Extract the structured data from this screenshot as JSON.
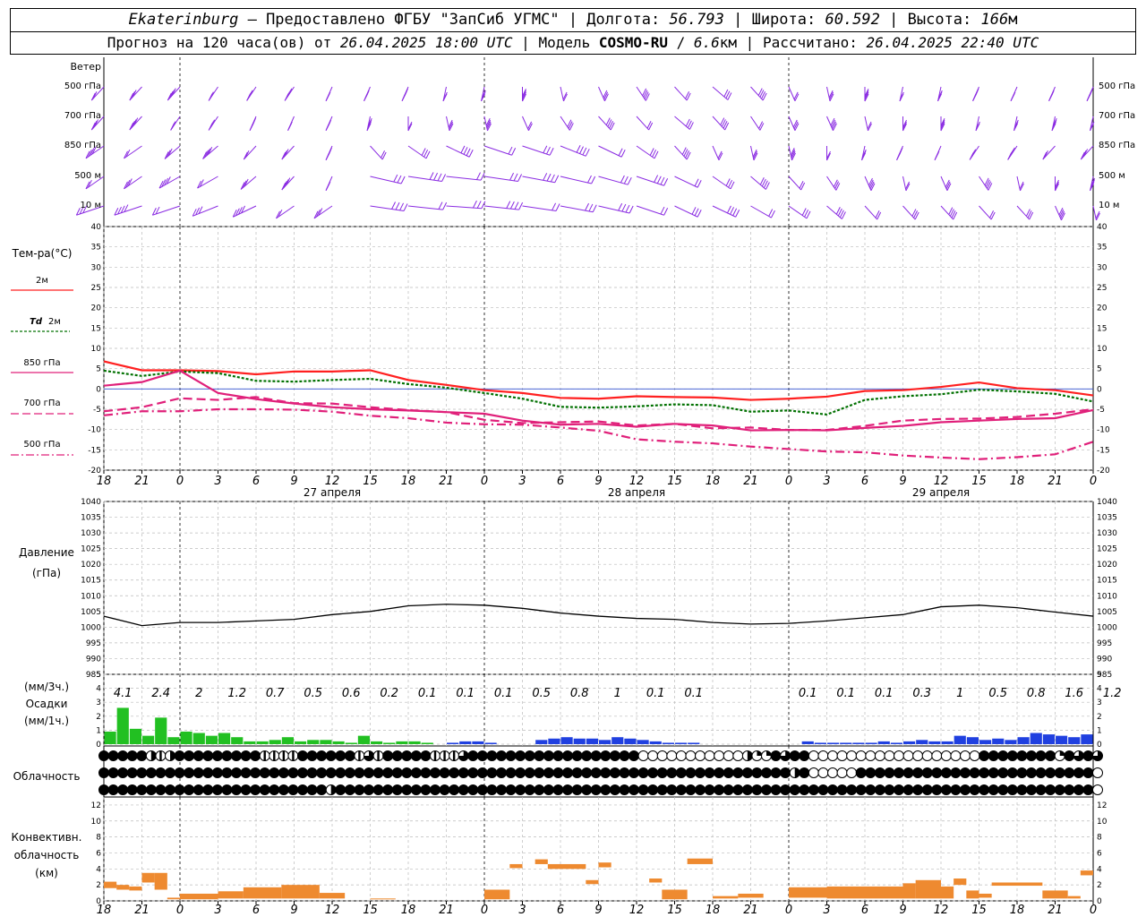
{
  "header": {
    "city": "Ekaterinburg",
    "dash": "–",
    "provider": "Предоставлено ФГБУ \"ЗапСиб УГМС\"",
    "lon_label": "Долгота:",
    "lon": "56.793",
    "lat_label": "Широта:",
    "lat": "60.592",
    "alt_label": "Высота:",
    "alt": "166",
    "alt_unit": "м",
    "fc_label": "Прогноз на 120 часа(ов) от",
    "fc_from": "26.04.2025 18:00 UTC",
    "model_label": "Модель",
    "model": "COSMO-RU",
    "res": "6.6",
    "res_unit": "км",
    "calc_label": "Рассчитано:",
    "calc": "26.04.2025 22:40 UTC"
  },
  "panels": {
    "wind": {
      "title": "Ветер",
      "levels": [
        "500 гПа",
        "700 гПа",
        "850 гПа",
        "500 м",
        "10 м"
      ],
      "color": "#8a2be2"
    },
    "temp": {
      "title": "Тем-ра(°C)",
      "legend": [
        {
          "label": "2м",
          "color": "#ff2020",
          "style": "solid"
        },
        {
          "label": "Td",
          "label2": "2м",
          "color": "#007000",
          "style": "dot"
        },
        {
          "label": "850 гПа",
          "color": "#e0207a",
          "style": "solid"
        },
        {
          "label": "700 гПа",
          "color": "#e0207a",
          "style": "dash"
        },
        {
          "label": "500 гПа",
          "color": "#e0207a",
          "style": "dashdot"
        }
      ],
      "yticks": [
        "40",
        "35",
        "30",
        "25",
        "20",
        "15",
        "10",
        "5",
        "0",
        "-5",
        "-10",
        "-15",
        "-20"
      ]
    },
    "pressure": {
      "title": "Давление",
      "unit": "(гПа)",
      "yticks": [
        "1040",
        "1035",
        "1030",
        "1025",
        "1020",
        "1015",
        "1010",
        "1005",
        "1000",
        "995",
        "990",
        "985"
      ]
    },
    "precip": {
      "unit_top": "(мм/3ч.)",
      "title": "Осадки",
      "unit_bottom": "(мм/1ч.)",
      "yticks": [
        "5",
        "4",
        "3",
        "2",
        "1",
        "0"
      ],
      "sums": [
        "4.1",
        "2.4",
        "2",
        "1.2",
        "0.7",
        "0.5",
        "0.6",
        "0.2",
        "0.1",
        "0.1",
        "0.1",
        "0.5",
        "0.8",
        "1",
        "0.1",
        "0.1",
        "",
        "",
        "0.1",
        "0.1",
        "0.1",
        "0.3",
        "1",
        "0.5",
        "0.8",
        "1.6",
        "1.2"
      ]
    },
    "cloud": {
      "title": "Облачность"
    },
    "conv": {
      "title_1": "Конвективн.",
      "title_2": "облачность",
      "unit": "(км)",
      "yticks": [
        "12",
        "10",
        "8",
        "6",
        "4",
        "2",
        "0"
      ]
    }
  },
  "time_axis": {
    "hour_labels": [
      "18",
      "21",
      "0",
      "3",
      "6",
      "9",
      "12",
      "15",
      "18",
      "21",
      "0",
      "3",
      "6",
      "9",
      "12",
      "15",
      "18",
      "21",
      "0",
      "3",
      "6",
      "9",
      "12",
      "15",
      "18",
      "21",
      "0"
    ],
    "day_labels": [
      "27 апреля",
      "28 апреля",
      "29 апреля"
    ]
  },
  "chart_data": {
    "type": "line",
    "x_unit": "hours since 26.04.2025 18:00 UTC",
    "x_range": [
      0,
      78
    ],
    "temperature": {
      "ylim": [
        -20,
        40
      ],
      "series": [
        {
          "name": "2м",
          "x": [
            0,
            3,
            6,
            9,
            12,
            15,
            18,
            21,
            24,
            27,
            30,
            33,
            36,
            39,
            42,
            45,
            48,
            51,
            54,
            57,
            60,
            63,
            66,
            69,
            72,
            75,
            78
          ],
          "values": [
            6.8,
            4.6,
            4.6,
            4.4,
            3.6,
            4.3,
            4.3,
            4.6,
            2.2,
            1.0,
            -0.3,
            -1.0,
            -2.2,
            -2.4,
            -1.8,
            -2.0,
            -2.1,
            -2.7,
            -2.4,
            -1.9,
            -0.5,
            -0.3,
            0.5,
            1.6,
            0.2,
            -0.3,
            -1.6
          ]
        },
        {
          "name": "Td 2м",
          "x": [
            0,
            3,
            6,
            9,
            12,
            15,
            18,
            21,
            24,
            27,
            30,
            33,
            36,
            39,
            42,
            45,
            48,
            51,
            54,
            57,
            60,
            63,
            66,
            69,
            72,
            75,
            78
          ],
          "values": [
            4.5,
            3.2,
            4.3,
            3.9,
            2.0,
            1.8,
            2.2,
            2.5,
            1.2,
            0.3,
            -1.0,
            -2.4,
            -4.4,
            -4.6,
            -4.3,
            -3.8,
            -4.0,
            -5.6,
            -5.3,
            -6.3,
            -2.7,
            -1.8,
            -1.3,
            -0.2,
            -0.6,
            -1.2,
            -3.1
          ]
        },
        {
          "name": "850 гПа",
          "x": [
            0,
            3,
            6,
            9,
            12,
            15,
            18,
            21,
            24,
            27,
            30,
            33,
            36,
            39,
            42,
            45,
            48,
            51,
            54,
            57,
            60,
            63,
            66,
            69,
            72,
            75,
            78
          ],
          "values": [
            0.8,
            1.7,
            4.5,
            -1.0,
            -2.5,
            -3.6,
            -4.5,
            -5.0,
            -5.3,
            -5.7,
            -6.1,
            -7.8,
            -8.8,
            -8.6,
            -9.3,
            -8.6,
            -9.0,
            -10.2,
            -10.1,
            -10.2,
            -9.6,
            -9.1,
            -8.2,
            -7.8,
            -7.4,
            -7.2,
            -5.2
          ]
        },
        {
          "name": "700 гПа",
          "x": [
            0,
            3,
            6,
            9,
            12,
            15,
            18,
            21,
            24,
            27,
            30,
            33,
            36,
            39,
            42,
            45,
            48,
            51,
            54,
            57,
            60,
            63,
            66,
            69,
            72,
            75,
            78
          ],
          "values": [
            -5.5,
            -4.5,
            -2.3,
            -2.7,
            -2.0,
            -3.5,
            -3.6,
            -4.5,
            -5.2,
            -5.7,
            -7.6,
            -8.4,
            -8.2,
            -8.0,
            -9.0,
            -8.6,
            -9.7,
            -9.5,
            -10.1,
            -10.1,
            -9.1,
            -7.8,
            -7.4,
            -7.3,
            -6.9,
            -6.1,
            -5.0
          ]
        },
        {
          "name": "500 гПа",
          "x": [
            0,
            3,
            6,
            9,
            12,
            15,
            18,
            21,
            24,
            27,
            30,
            33,
            36,
            39,
            42,
            45,
            48,
            51,
            54,
            57,
            60,
            63,
            66,
            69,
            72,
            75,
            78
          ],
          "values": [
            -6.5,
            -5.5,
            -5.5,
            -5.0,
            -5.0,
            -5.1,
            -5.6,
            -6.6,
            -7.2,
            -8.3,
            -8.7,
            -8.8,
            -9.5,
            -10.3,
            -12.4,
            -13.0,
            -13.4,
            -14.2,
            -14.8,
            -15.4,
            -15.6,
            -16.4,
            -16.9,
            -17.3,
            -16.8,
            -16.1,
            -13.0
          ]
        }
      ]
    },
    "pressure": {
      "ylim": [
        985,
        1040
      ],
      "x": [
        0,
        3,
        6,
        9,
        12,
        15,
        18,
        21,
        24,
        27,
        30,
        33,
        36,
        39,
        42,
        45,
        48,
        51,
        54,
        57,
        60,
        63,
        66,
        69,
        72,
        75,
        78
      ],
      "values": [
        1003.5,
        1000.5,
        1001.5,
        1001.5,
        1002.0,
        1002.5,
        1004.0,
        1005.0,
        1006.8,
        1007.3,
        1007.0,
        1006.0,
        1004.5,
        1003.5,
        1002.8,
        1002.5,
        1001.5,
        1001.0,
        1001.2,
        1002.0,
        1003.0,
        1004.0,
        1006.5,
        1007.0,
        1006.2,
        1004.8,
        1003.5
      ]
    },
    "precip_hourly": {
      "ylim": [
        0,
        5
      ],
      "green": {
        "x": [
          0,
          1,
          2,
          3,
          4,
          5,
          6,
          7,
          8,
          9,
          10,
          11,
          12,
          13,
          14,
          15,
          16,
          17,
          18,
          19,
          20,
          21,
          22,
          23,
          24,
          25
        ],
        "values": [
          0.9,
          2.6,
          1.1,
          0.6,
          1.9,
          0.5,
          0.9,
          0.8,
          0.6,
          0.8,
          0.5,
          0.2,
          0.2,
          0.3,
          0.5,
          0.2,
          0.3,
          0.3,
          0.2,
          0.1,
          0.6,
          0.2,
          0.1,
          0.2,
          0.2,
          0.1
        ]
      },
      "blue": {
        "x": [
          27,
          28,
          29,
          30,
          34,
          35,
          36,
          37,
          38,
          39,
          40,
          41,
          42,
          43,
          44,
          45,
          46,
          55,
          56,
          57,
          58,
          59,
          60,
          61,
          62,
          63,
          64,
          65,
          66,
          67,
          68,
          69,
          70,
          71,
          72,
          73,
          74,
          75,
          76,
          77
        ],
        "values": [
          0.1,
          0.2,
          0.2,
          0.1,
          0.3,
          0.4,
          0.5,
          0.4,
          0.4,
          0.3,
          0.5,
          0.4,
          0.3,
          0.2,
          0.1,
          0.1,
          0.1,
          0.2,
          0.1,
          0.1,
          0.1,
          0.1,
          0.1,
          0.2,
          0.1,
          0.2,
          0.3,
          0.2,
          0.2,
          0.6,
          0.5,
          0.3,
          0.4,
          0.3,
          0.5,
          0.8,
          0.7,
          0.6,
          0.5,
          0.7
        ]
      }
    },
    "cloud_rows": [
      "FFFFFHOHFFFFFFFFFOOOOFFFFFFOMOFFFFFOOOMFFFFFFFFFFFFFFFFFFEEEEEEEEEEEHTTFMFFEEEEEEEEEEEEEEEEEEFFFFFFFFTFMFM",
      "FFFFFFFFFFFFFFFFFFFFFFFFFFFFFFFFFFFFFFFFFFFFFFFFFFFFFFFFFFFFFFFFFFFFFFFFFHFEEEEEFFFFFFFFFFFFFFFFFFFFFFFFF",
      "FFFFFFFFFFFFFFFFFFFFFFFFHFFFFFFFFFFFFFFFFFFFFFFFFFFFFFFFFFFFFFFFFFFFFFFFFFFFFFFFFFFFFFFFFFFFFFFFFFFFFFFFF"
    ],
    "convective": {
      "ylim": [
        0,
        12
      ],
      "units": "km",
      "segments": [
        {
          "x0": 0,
          "x1": 1,
          "base": 1.6,
          "top": 2.4
        },
        {
          "x0": 1,
          "x1": 2,
          "base": 1.4,
          "top": 2.0
        },
        {
          "x0": 2,
          "x1": 3,
          "base": 1.3,
          "top": 1.8
        },
        {
          "x0": 3,
          "x1": 4,
          "base": 2.3,
          "top": 3.5
        },
        {
          "x0": 4,
          "x1": 5,
          "base": 1.4,
          "top": 3.5
        },
        {
          "x0": 5,
          "x1": 6,
          "base": 0.2,
          "top": 0.4
        },
        {
          "x0": 6,
          "x1": 9,
          "base": 0.2,
          "top": 0.9
        },
        {
          "x0": 9,
          "x1": 11,
          "base": 0.3,
          "top": 1.2
        },
        {
          "x0": 11,
          "x1": 14,
          "base": 0.3,
          "top": 1.7
        },
        {
          "x0": 14,
          "x1": 17,
          "base": 0.3,
          "top": 2.0
        },
        {
          "x0": 17,
          "x1": 19,
          "base": 0.3,
          "top": 1.0
        },
        {
          "x0": 21,
          "x1": 23,
          "base": 0.2,
          "top": 0.3
        },
        {
          "x0": 30,
          "x1": 32,
          "base": 0.2,
          "top": 1.4
        },
        {
          "x0": 32,
          "x1": 33,
          "base": 4.1,
          "top": 4.6
        },
        {
          "x0": 34,
          "x1": 35,
          "base": 4.6,
          "top": 5.2
        },
        {
          "x0": 35,
          "x1": 38,
          "base": 4.0,
          "top": 4.6
        },
        {
          "x0": 38,
          "x1": 39,
          "base": 2.1,
          "top": 2.6
        },
        {
          "x0": 39,
          "x1": 40,
          "base": 4.2,
          "top": 4.8
        },
        {
          "x0": 43,
          "x1": 44,
          "base": 2.3,
          "top": 2.8
        },
        {
          "x0": 44,
          "x1": 46,
          "base": 0.2,
          "top": 1.4
        },
        {
          "x0": 46,
          "x1": 48,
          "base": 4.6,
          "top": 5.3
        },
        {
          "x0": 48,
          "x1": 50,
          "base": 0.3,
          "top": 0.6
        },
        {
          "x0": 50,
          "x1": 52,
          "base": 0.4,
          "top": 0.9
        },
        {
          "x0": 54,
          "x1": 57,
          "base": 0.4,
          "top": 1.7
        },
        {
          "x0": 57,
          "x1": 60,
          "base": 0.3,
          "top": 1.8
        },
        {
          "x0": 60,
          "x1": 63,
          "base": 0.3,
          "top": 1.8
        },
        {
          "x0": 63,
          "x1": 64,
          "base": 0.3,
          "top": 2.2
        },
        {
          "x0": 64,
          "x1": 66,
          "base": 0.3,
          "top": 2.6
        },
        {
          "x0": 66,
          "x1": 67,
          "base": 0.3,
          "top": 1.8
        },
        {
          "x0": 67,
          "x1": 68,
          "base": 2.0,
          "top": 2.8
        },
        {
          "x0": 68,
          "x1": 69,
          "base": 0.3,
          "top": 1.3
        },
        {
          "x0": 69,
          "x1": 70,
          "base": 0.4,
          "top": 0.9
        },
        {
          "x0": 70,
          "x1": 74,
          "base": 1.9,
          "top": 2.3
        },
        {
          "x0": 74,
          "x1": 76,
          "base": 0.3,
          "top": 1.3
        },
        {
          "x0": 76,
          "x1": 77,
          "base": 0.3,
          "top": 0.6
        },
        {
          "x0": 77,
          "x1": 78,
          "base": 3.2,
          "top": 3.8
        }
      ]
    },
    "wind_barbs_note": "barbs drawn per level, 3-hourly"
  }
}
